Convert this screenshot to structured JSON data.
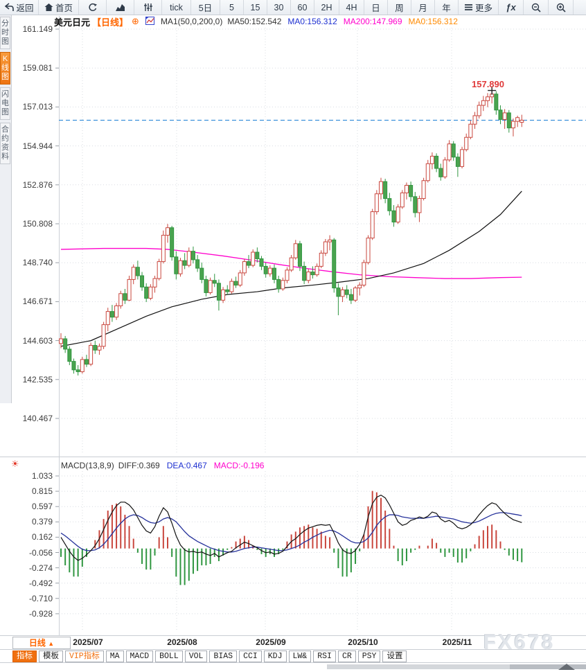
{
  "toolbar": {
    "items": [
      {
        "icon": "back-icon",
        "label": "返回"
      },
      {
        "icon": "home-icon",
        "label": "首页"
      },
      {
        "icon": "refresh-icon",
        "label": ""
      },
      {
        "icon": "linechart-icon",
        "label": ""
      },
      {
        "icon": "candlestick-icon",
        "label": ""
      },
      {
        "label": "tick"
      },
      {
        "label": "5日"
      },
      {
        "label": "5"
      },
      {
        "label": "15"
      },
      {
        "label": "30"
      },
      {
        "label": "60"
      },
      {
        "label": "2H"
      },
      {
        "label": "4H"
      },
      {
        "label": "日"
      },
      {
        "label": "周"
      },
      {
        "label": "月"
      },
      {
        "label": "年"
      },
      {
        "icon": "menu-icon",
        "label": "更多"
      },
      {
        "icon": "fx-icon",
        "label": "ƒx"
      },
      {
        "icon": "zoom-out-icon",
        "label": ""
      },
      {
        "icon": "zoom-in-icon",
        "label": ""
      }
    ]
  },
  "sidebar": {
    "tabs": [
      {
        "label": "分时图",
        "active": false
      },
      {
        "label": "K线图",
        "active": true
      },
      {
        "label": "闪电图",
        "active": false
      },
      {
        "label": "合约资料",
        "active": false
      }
    ]
  },
  "chart_header": {
    "symbol": "美元日元",
    "period": "【日线】",
    "plus": "⊕",
    "ma_settings": "MA1(50,0,200,0)",
    "ma50": "MA50:152.542",
    "ma0_blue": "MA0:156.312",
    "ma200": "MA200:147.969",
    "ma0_orange": "MA0:156.312"
  },
  "annotation": {
    "peak_price": "157.890"
  },
  "macd_header": {
    "title": "MACD(13,8,9)",
    "diff": "DIFF:0.369",
    "dea": "DEA:0.467",
    "macd": "MACD:-0.196"
  },
  "bottom": {
    "interval": "日线",
    "interval_arrow": "▲",
    "tabs": [
      {
        "label": "指标",
        "state": "selected"
      },
      {
        "label": "模板",
        "state": "normal"
      },
      {
        "label": "VIP指标",
        "state": "vip"
      },
      {
        "label": "MA",
        "state": "normal"
      },
      {
        "label": "MACD",
        "state": "normal"
      },
      {
        "label": "BOLL",
        "state": "normal"
      },
      {
        "label": "VOL",
        "state": "normal"
      },
      {
        "label": "BIAS",
        "state": "normal"
      },
      {
        "label": "CCI",
        "state": "normal"
      },
      {
        "label": "KDJ",
        "state": "normal"
      },
      {
        "label": "LW&",
        "state": "normal"
      },
      {
        "label": "RSI",
        "state": "normal"
      },
      {
        "label": "CR",
        "state": "normal"
      },
      {
        "label": "PSY",
        "state": "normal"
      },
      {
        "label": "设置",
        "state": "normal"
      }
    ]
  },
  "watermark": "FX678",
  "colors": {
    "accent_orange": "#f60",
    "up_red": "#c9463d",
    "down_green": "#2f9640",
    "ma50_line": "#111111",
    "ma200_line": "#ff00cc",
    "dea_line": "#26329b",
    "current_price_line": "#1a7fd4",
    "annotation_red": "#e03a3a"
  },
  "chart_data": {
    "type": "candlestick",
    "title": "美元日元 日线 (USD/JPY daily with MA50/MA200 and MACD(13,8,9))",
    "months": [
      "2025/07",
      "2025/08",
      "2025/09",
      "2025/10",
      "2025/11"
    ],
    "price_ticks": [
      161.149,
      159.081,
      157.013,
      154.944,
      152.876,
      150.808,
      148.74,
      146.671,
      144.603,
      142.535,
      140.467
    ],
    "current_price": 156.312,
    "peak_marker": {
      "index": 101,
      "price": 157.89,
      "label": "157.890"
    },
    "candles": [
      [
        144.45,
        145.0,
        144.2,
        144.7
      ],
      [
        144.7,
        144.85,
        143.95,
        144.15
      ],
      [
        144.15,
        144.3,
        143.3,
        143.5
      ],
      [
        143.5,
        143.65,
        142.85,
        143.05
      ],
      [
        143.05,
        143.3,
        142.75,
        142.95
      ],
      [
        142.95,
        143.75,
        142.85,
        143.6
      ],
      [
        143.6,
        143.85,
        143.2,
        143.35
      ],
      [
        143.35,
        144.5,
        143.25,
        144.35
      ],
      [
        144.35,
        144.6,
        143.9,
        144.1
      ],
      [
        144.1,
        144.45,
        143.85,
        144.3
      ],
      [
        144.3,
        145.6,
        144.15,
        145.45
      ],
      [
        145.45,
        146.35,
        145.1,
        146.15
      ],
      [
        146.15,
        146.5,
        145.6,
        145.85
      ],
      [
        145.85,
        146.6,
        145.7,
        146.45
      ],
      [
        146.45,
        147.25,
        146.3,
        147.1
      ],
      [
        147.1,
        147.35,
        146.55,
        146.75
      ],
      [
        146.75,
        148.05,
        146.7,
        147.85
      ],
      [
        147.85,
        148.65,
        147.6,
        148.5
      ],
      [
        148.5,
        148.85,
        147.85,
        148.05
      ],
      [
        148.05,
        148.25,
        147.25,
        147.45
      ],
      [
        147.45,
        147.65,
        146.65,
        146.85
      ],
      [
        146.85,
        147.6,
        146.75,
        147.45
      ],
      [
        147.45,
        148.05,
        147.15,
        147.9
      ],
      [
        147.9,
        148.95,
        147.8,
        148.8
      ],
      [
        148.8,
        150.45,
        148.7,
        150.2
      ],
      [
        150.2,
        150.8,
        149.8,
        150.6
      ],
      [
        150.6,
        150.7,
        148.85,
        149.05
      ],
      [
        149.05,
        149.35,
        147.85,
        148.15
      ],
      [
        148.15,
        149.0,
        148.0,
        148.85
      ],
      [
        148.85,
        149.25,
        148.4,
        148.6
      ],
      [
        148.6,
        149.55,
        148.5,
        149.35
      ],
      [
        149.35,
        149.6,
        148.7,
        148.9
      ],
      [
        148.9,
        149.15,
        148.25,
        148.45
      ],
      [
        148.45,
        148.75,
        147.65,
        147.85
      ],
      [
        147.85,
        148.05,
        146.95,
        147.15
      ],
      [
        147.15,
        147.95,
        147.05,
        147.8
      ],
      [
        147.8,
        148.15,
        147.45,
        147.65
      ],
      [
        147.65,
        147.85,
        146.2,
        146.75
      ],
      [
        146.75,
        147.45,
        146.6,
        147.3
      ],
      [
        147.3,
        147.55,
        147.05,
        147.2
      ],
      [
        147.2,
        147.9,
        147.1,
        147.75
      ],
      [
        147.75,
        148.0,
        147.4,
        147.55
      ],
      [
        147.55,
        148.35,
        147.45,
        148.2
      ],
      [
        148.2,
        148.95,
        148.05,
        148.8
      ],
      [
        148.8,
        149.15,
        148.45,
        148.6
      ],
      [
        148.6,
        149.45,
        148.5,
        149.3
      ],
      [
        149.3,
        149.55,
        148.75,
        148.95
      ],
      [
        148.95,
        149.1,
        148.35,
        148.55
      ],
      [
        148.55,
        148.75,
        147.95,
        148.15
      ],
      [
        148.15,
        148.6,
        148.0,
        148.45
      ],
      [
        148.45,
        148.65,
        147.65,
        147.85
      ],
      [
        147.85,
        148.05,
        147.15,
        147.35
      ],
      [
        147.35,
        147.95,
        147.25,
        147.8
      ],
      [
        147.8,
        148.5,
        147.65,
        148.35
      ],
      [
        148.35,
        149.15,
        148.25,
        149.0
      ],
      [
        149.0,
        149.95,
        148.9,
        149.75
      ],
      [
        149.75,
        149.9,
        148.3,
        148.55
      ],
      [
        148.55,
        148.8,
        147.6,
        147.8
      ],
      [
        147.8,
        148.4,
        147.65,
        148.25
      ],
      [
        148.25,
        148.55,
        147.9,
        148.1
      ],
      [
        148.1,
        148.7,
        148.0,
        148.55
      ],
      [
        148.55,
        149.4,
        148.45,
        149.25
      ],
      [
        149.25,
        150.0,
        149.1,
        149.85
      ],
      [
        149.85,
        150.2,
        149.4,
        149.95
      ],
      [
        149.95,
        150.05,
        147.15,
        147.4
      ],
      [
        147.4,
        147.65,
        145.95,
        146.95
      ],
      [
        146.95,
        147.45,
        146.65,
        147.3
      ],
      [
        147.3,
        147.55,
        146.85,
        147.05
      ],
      [
        147.05,
        147.35,
        146.55,
        146.75
      ],
      [
        146.75,
        147.5,
        146.65,
        147.4
      ],
      [
        147.4,
        147.7,
        147.0,
        147.55
      ],
      [
        147.55,
        148.9,
        147.45,
        148.75
      ],
      [
        148.75,
        150.2,
        148.65,
        150.05
      ],
      [
        150.05,
        151.6,
        149.95,
        151.45
      ],
      [
        151.45,
        152.6,
        151.3,
        152.4
      ],
      [
        152.4,
        153.25,
        152.1,
        153.05
      ],
      [
        153.05,
        153.2,
        151.9,
        152.15
      ],
      [
        152.15,
        152.45,
        151.25,
        151.5
      ],
      [
        151.5,
        151.8,
        150.65,
        150.9
      ],
      [
        150.9,
        151.85,
        150.8,
        151.7
      ],
      [
        151.7,
        152.6,
        151.6,
        152.45
      ],
      [
        152.45,
        153.0,
        152.1,
        152.85
      ],
      [
        152.85,
        153.05,
        152.0,
        152.25
      ],
      [
        152.25,
        152.5,
        151.15,
        151.4
      ],
      [
        151.4,
        152.3,
        150.9,
        152.15
      ],
      [
        152.15,
        153.25,
        152.05,
        153.1
      ],
      [
        153.1,
        154.2,
        153.0,
        154.0
      ],
      [
        154.0,
        154.6,
        153.7,
        154.4
      ],
      [
        154.4,
        154.55,
        153.55,
        153.75
      ],
      [
        153.75,
        154.0,
        153.1,
        153.3
      ],
      [
        153.3,
        154.35,
        153.2,
        154.2
      ],
      [
        154.2,
        155.25,
        154.1,
        155.05
      ],
      [
        155.05,
        155.2,
        154.15,
        154.35
      ],
      [
        154.35,
        154.55,
        153.3,
        153.85
      ],
      [
        153.85,
        154.9,
        153.75,
        154.75
      ],
      [
        154.75,
        155.6,
        154.65,
        155.4
      ],
      [
        155.4,
        156.3,
        155.3,
        156.1
      ],
      [
        156.1,
        156.75,
        155.85,
        156.55
      ],
      [
        156.55,
        157.3,
        156.4,
        157.1
      ],
      [
        157.1,
        157.6,
        156.8,
        157.35
      ],
      [
        157.35,
        157.75,
        157.0,
        157.55
      ],
      [
        157.55,
        157.89,
        157.2,
        157.7
      ],
      [
        157.7,
        157.85,
        156.6,
        156.85
      ],
      [
        156.85,
        157.1,
        156.1,
        156.35
      ],
      [
        156.35,
        156.9,
        155.85,
        156.7
      ],
      [
        156.7,
        156.85,
        155.65,
        155.9
      ],
      [
        155.9,
        156.4,
        155.45,
        156.25
      ],
      [
        156.25,
        156.55,
        155.95,
        156.45
      ],
      [
        156.2,
        156.6,
        155.95,
        156.312
      ]
    ],
    "ma50_points": [
      [
        0,
        144.3
      ],
      [
        7,
        144.6
      ],
      [
        13,
        145.2
      ],
      [
        20,
        145.9
      ],
      [
        26,
        146.4
      ],
      [
        33,
        146.8
      ],
      [
        39,
        147.05
      ],
      [
        46,
        147.2
      ],
      [
        52,
        147.4
      ],
      [
        59,
        147.55
      ],
      [
        65,
        147.7
      ],
      [
        72,
        147.9
      ],
      [
        78,
        148.2
      ],
      [
        85,
        148.7
      ],
      [
        91,
        149.4
      ],
      [
        98,
        150.4
      ],
      [
        103,
        151.3
      ],
      [
        108,
        152.54
      ]
    ],
    "ma200_points": [
      [
        0,
        149.45
      ],
      [
        10,
        149.5
      ],
      [
        20,
        149.5
      ],
      [
        25,
        149.45
      ],
      [
        31,
        149.3
      ],
      [
        38,
        149.1
      ],
      [
        44,
        148.9
      ],
      [
        51,
        148.65
      ],
      [
        57,
        148.45
      ],
      [
        64,
        148.25
      ],
      [
        70,
        148.1
      ],
      [
        77,
        148.0
      ],
      [
        83,
        147.95
      ],
      [
        90,
        147.9
      ],
      [
        96,
        147.9
      ],
      [
        103,
        147.95
      ],
      [
        108,
        147.97
      ]
    ],
    "macd": {
      "params": "(13,8,9)",
      "ticks": [
        1.033,
        0.815,
        0.597,
        0.379,
        0.162,
        -0.056,
        -0.274,
        -0.492,
        -0.71,
        -0.928
      ],
      "hist_rule": "histogram = 2*(diff-dea)",
      "diff": [
        0.16,
        0.06,
        -0.04,
        -0.12,
        -0.17,
        -0.14,
        -0.09,
        -0.03,
        0.04,
        0.14,
        0.27,
        0.4,
        0.52,
        0.61,
        0.66,
        0.66,
        0.62,
        0.55,
        0.44,
        0.33,
        0.25,
        0.22,
        0.31,
        0.46,
        0.58,
        0.52,
        0.36,
        0.18,
        0.05,
        -0.02,
        -0.05,
        -0.04,
        -0.06,
        -0.05,
        -0.08,
        -0.1,
        -0.07,
        -0.12,
        -0.09,
        -0.06,
        -0.04,
        0.01,
        0.05,
        0.09,
        0.07,
        0.04,
        0.01,
        -0.03,
        -0.06,
        -0.05,
        -0.08,
        -0.07,
        -0.04,
        0.03,
        0.1,
        0.14,
        0.2,
        0.25,
        0.29,
        0.31,
        0.33,
        0.34,
        0.33,
        0.34,
        0.22,
        0.08,
        -0.02,
        -0.06,
        -0.07,
        -0.03,
        0.06,
        0.2,
        0.45,
        0.64,
        0.73,
        0.76,
        0.72,
        0.62,
        0.5,
        0.38,
        0.33,
        0.35,
        0.4,
        0.42,
        0.45,
        0.43,
        0.46,
        0.52,
        0.5,
        0.42,
        0.38,
        0.4,
        0.36,
        0.3,
        0.28,
        0.3,
        0.34,
        0.4,
        0.48,
        0.55,
        0.61,
        0.65,
        0.63,
        0.56,
        0.5,
        0.45,
        0.41,
        0.39,
        0.369
      ],
      "dea": [
        0.22,
        0.18,
        0.13,
        0.08,
        0.03,
        -0.01,
        -0.03,
        -0.03,
        -0.02,
        0.01,
        0.06,
        0.13,
        0.21,
        0.29,
        0.36,
        0.42,
        0.46,
        0.48,
        0.47,
        0.44,
        0.4,
        0.37,
        0.36,
        0.38,
        0.42,
        0.44,
        0.42,
        0.38,
        0.31,
        0.24,
        0.18,
        0.14,
        0.1,
        0.07,
        0.04,
        0.01,
        -0.01,
        -0.03,
        -0.04,
        -0.05,
        -0.05,
        -0.04,
        -0.02,
        0.0,
        0.01,
        0.02,
        0.02,
        0.01,
        0.0,
        -0.01,
        -0.02,
        -0.03,
        -0.03,
        -0.02,
        0.0,
        0.02,
        0.05,
        0.09,
        0.12,
        0.16,
        0.19,
        0.22,
        0.24,
        0.26,
        0.25,
        0.22,
        0.18,
        0.14,
        0.1,
        0.08,
        0.08,
        0.1,
        0.15,
        0.23,
        0.33,
        0.4,
        0.45,
        0.48,
        0.48,
        0.47,
        0.45,
        0.44,
        0.43,
        0.43,
        0.43,
        0.43,
        0.44,
        0.45,
        0.46,
        0.45,
        0.44,
        0.43,
        0.42,
        0.4,
        0.38,
        0.37,
        0.36,
        0.37,
        0.39,
        0.42,
        0.45,
        0.48,
        0.5,
        0.51,
        0.51,
        0.5,
        0.49,
        0.48,
        0.467
      ]
    }
  }
}
